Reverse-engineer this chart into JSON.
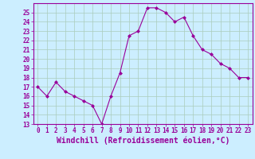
{
  "x": [
    0,
    1,
    2,
    3,
    4,
    5,
    6,
    7,
    8,
    9,
    10,
    11,
    12,
    13,
    14,
    15,
    16,
    17,
    18,
    19,
    20,
    21,
    22,
    23
  ],
  "y": [
    17,
    16,
    17.5,
    16.5,
    16,
    15.5,
    15,
    13,
    16,
    18.5,
    22.5,
    23,
    25.5,
    25.5,
    25,
    24,
    24.5,
    22.5,
    21,
    20.5,
    19.5,
    19,
    18,
    18
  ],
  "xlabel": "Windchill (Refroidissement éolien,°C)",
  "xlim": [
    -0.5,
    23.5
  ],
  "ylim": [
    13,
    26
  ],
  "xticks": [
    0,
    1,
    2,
    3,
    4,
    5,
    6,
    7,
    8,
    9,
    10,
    11,
    12,
    13,
    14,
    15,
    16,
    17,
    18,
    19,
    20,
    21,
    22,
    23
  ],
  "yticks": [
    13,
    14,
    15,
    16,
    17,
    18,
    19,
    20,
    21,
    22,
    23,
    24,
    25
  ],
  "line_color": "#990099",
  "marker": "D",
  "marker_size": 2.0,
  "bg_color": "#cceeff",
  "grid_color": "#aaccbb",
  "tick_label_fontsize": 5.5,
  "xlabel_fontsize": 7.0,
  "linewidth": 0.8
}
